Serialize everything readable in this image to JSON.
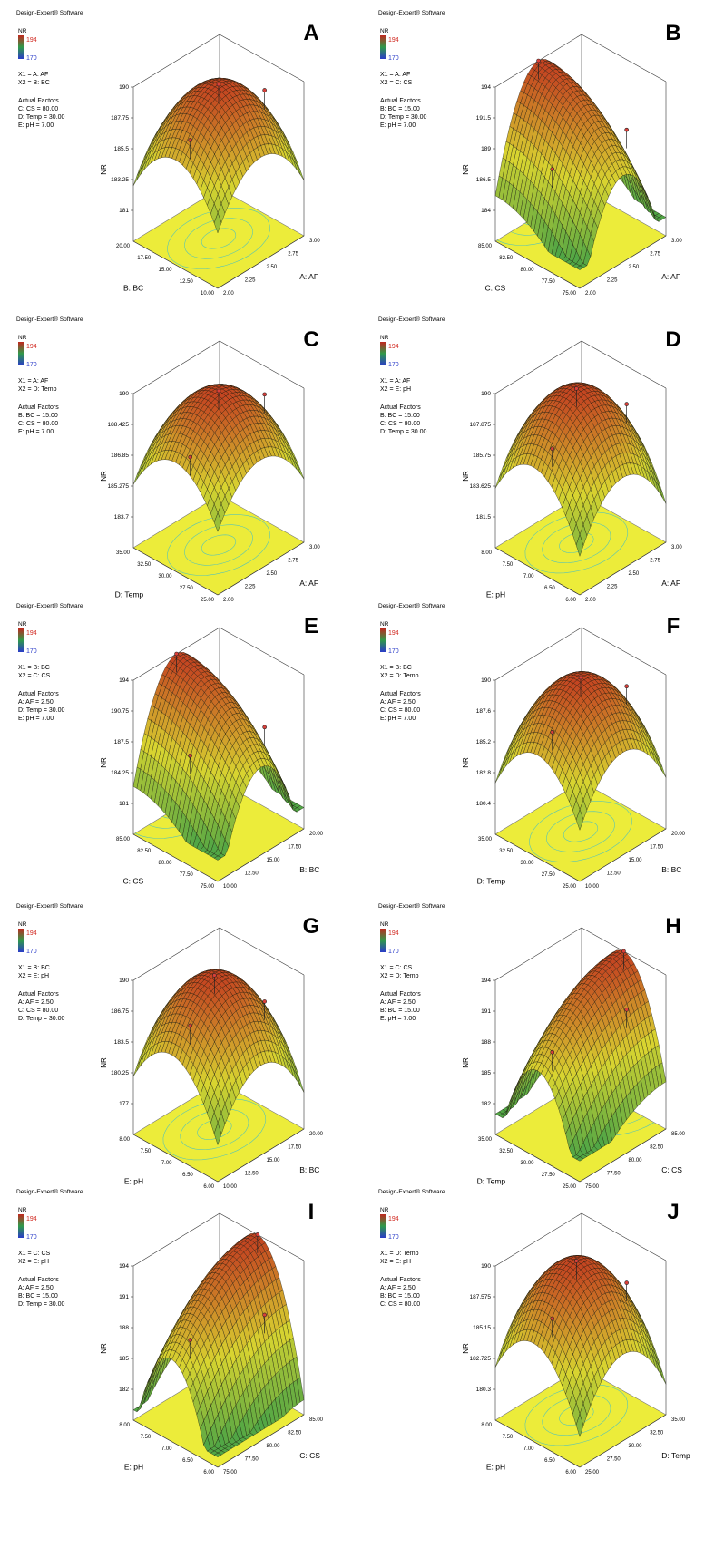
{
  "software_label": "Design-Expert® Software",
  "response_name": "NR",
  "legend_max": "194",
  "legend_min": "170",
  "colors": {
    "high": "#c0281e",
    "mid": "#d8d430",
    "low": "#2f9a4a",
    "floor": "#ecec3a",
    "contour": "#58c4b4",
    "legend_low_text": "#2a3bc8",
    "legend_high_text": "#d0241c"
  },
  "actual_factors_heading": "Actual Factors",
  "chart_data": [
    {
      "type": "surface3d",
      "panel": "A",
      "x1": "X1 = A: AF",
      "x2": "X2 = B: BC",
      "factors": [
        "C: CS = 80.00",
        "D: Temp = 30.00",
        "E: pH = 7.00"
      ],
      "xlabel": "A: AF",
      "ylabel": "B: BC",
      "zlabel": "NR",
      "xticks": [
        "2.00",
        "2.25",
        "2.50",
        "2.75",
        "3.00"
      ],
      "yticks": [
        "10.00",
        "12.50",
        "15.00",
        "17.50",
        "20.00"
      ],
      "zticks": [
        "181",
        "183.25",
        "185.5",
        "187.75",
        "190"
      ],
      "zlim": [
        178.75,
        190
      ],
      "shape": "dome",
      "peak": [
        0.5,
        0.5
      ],
      "min_z": 181
    },
    {
      "type": "surface3d",
      "panel": "B",
      "x1": "X1 = A: AF",
      "x2": "X2 = C: CS",
      "factors": [
        "B: BC = 15.00",
        "D: Temp = 30.00",
        "E: pH = 7.00"
      ],
      "xlabel": "A: AF",
      "ylabel": "C: CS",
      "zlabel": "NR",
      "xticks": [
        "2.00",
        "2.25",
        "2.50",
        "2.75",
        "3.00"
      ],
      "yticks": [
        "75.00",
        "77.50",
        "80.00",
        "82.50",
        "85.00"
      ],
      "zticks": [
        "184",
        "186.5",
        "189",
        "191.5",
        "194"
      ],
      "zlim": [
        181.5,
        194
      ],
      "shape": "ridge_x",
      "peak": [
        0.5,
        1.0
      ],
      "min_z": 183
    },
    {
      "type": "surface3d",
      "panel": "C",
      "x1": "X1 = A: AF",
      "x2": "X2 = D: Temp",
      "factors": [
        "B: BC = 15.00",
        "C: CS = 80.00",
        "E: pH = 7.00"
      ],
      "xlabel": "A: AF",
      "ylabel": "D: Temp",
      "zlabel": "NR",
      "xticks": [
        "2.00",
        "2.25",
        "2.50",
        "2.75",
        "3.00"
      ],
      "yticks": [
        "25.00",
        "27.50",
        "30.00",
        "32.50",
        "35.00"
      ],
      "zticks": [
        "183.7",
        "185.275",
        "186.85",
        "188.425",
        "190"
      ],
      "zlim": [
        182.125,
        190
      ],
      "shape": "dome",
      "peak": [
        0.5,
        0.5
      ],
      "min_z": 184.2
    },
    {
      "type": "surface3d",
      "panel": "D",
      "x1": "X1 = A: AF",
      "x2": "X2 = E: pH",
      "factors": [
        "B: BC = 15.00",
        "C: CS = 80.00",
        "D: Temp = 30.00"
      ],
      "xlabel": "A: AF",
      "ylabel": "E: pH",
      "zlabel": "NR",
      "xticks": [
        "2.00",
        "2.25",
        "2.50",
        "2.75",
        "3.00"
      ],
      "yticks": [
        "6.00",
        "6.50",
        "7.00",
        "7.50",
        "8.00"
      ],
      "zticks": [
        "181.5",
        "183.625",
        "185.75",
        "187.875",
        "190"
      ],
      "zlim": [
        179.375,
        190
      ],
      "shape": "dome",
      "peak": [
        0.5,
        0.55
      ],
      "min_z": 181
    },
    {
      "type": "surface3d",
      "panel": "E",
      "x1": "X1 = B: BC",
      "x2": "X2 = C: CS",
      "factors": [
        "A: AF = 2.50",
        "D: Temp = 30.00",
        "E: pH = 7.00"
      ],
      "xlabel": "B: BC",
      "ylabel": "C: CS",
      "zlabel": "NR",
      "xticks": [
        "10.00",
        "12.50",
        "15.00",
        "17.50",
        "20.00"
      ],
      "yticks": [
        "75.00",
        "77.50",
        "80.00",
        "82.50",
        "85.00"
      ],
      "zticks": [
        "181",
        "184.25",
        "187.5",
        "190.75",
        "194"
      ],
      "zlim": [
        177.75,
        194
      ],
      "shape": "ridge_x",
      "peak": [
        0.5,
        1.0
      ],
      "min_z": 180
    },
    {
      "type": "surface3d",
      "panel": "F",
      "x1": "X1 = B: BC",
      "x2": "X2 = D: Temp",
      "factors": [
        "A: AF = 2.50",
        "C: CS = 80.00",
        "E: pH = 7.00"
      ],
      "xlabel": "B: BC",
      "ylabel": "D: Temp",
      "zlabel": "NR",
      "xticks": [
        "10.00",
        "12.50",
        "15.00",
        "17.50",
        "20.00"
      ],
      "yticks": [
        "25.00",
        "27.50",
        "30.00",
        "32.50",
        "35.00"
      ],
      "zticks": [
        "180.4",
        "182.8",
        "185.2",
        "187.6",
        "190"
      ],
      "zlim": [
        178,
        190
      ],
      "shape": "dome",
      "peak": [
        0.5,
        0.5
      ],
      "min_z": 180
    },
    {
      "type": "surface3d",
      "panel": "G",
      "x1": "X1 = B: BC",
      "x2": "X2 = E: pH",
      "factors": [
        "A: AF = 2.50",
        "C: CS = 80.00",
        "D: Temp = 30.00"
      ],
      "xlabel": "B: BC",
      "ylabel": "E: pH",
      "zlabel": "NR",
      "xticks": [
        "10.00",
        "12.50",
        "15.00",
        "17.50",
        "20.00"
      ],
      "yticks": [
        "6.00",
        "6.50",
        "7.00",
        "7.50",
        "8.00"
      ],
      "zticks": [
        "177",
        "180.25",
        "183.5",
        "186.75",
        "190"
      ],
      "zlim": [
        173.75,
        190
      ],
      "shape": "dome",
      "peak": [
        0.5,
        0.55
      ],
      "min_z": 176
    },
    {
      "type": "surface3d",
      "panel": "H",
      "x1": "X1 = C: CS",
      "x2": "X2 = D: Temp",
      "factors": [
        "A: AF = 2.50",
        "B: BC = 15.00",
        "E: pH = 7.00"
      ],
      "xlabel": "C: CS",
      "ylabel": "D: Temp",
      "zlabel": "NR",
      "xticks": [
        "75.00",
        "77.50",
        "80.00",
        "82.50",
        "85.00"
      ],
      "yticks": [
        "25.00",
        "27.50",
        "30.00",
        "32.50",
        "35.00"
      ],
      "zticks": [
        "182",
        "185",
        "188",
        "191",
        "194"
      ],
      "zlim": [
        179,
        194
      ],
      "shape": "ridge_y",
      "peak": [
        1.0,
        0.5
      ],
      "min_z": 181
    },
    {
      "type": "surface3d",
      "panel": "I",
      "x1": "X1 = C: CS",
      "x2": "X2 = E: pH",
      "factors": [
        "A: AF = 2.50",
        "B: BC = 15.00",
        "D: Temp = 30.00"
      ],
      "xlabel": "C: CS",
      "ylabel": "E: pH",
      "zlabel": "NR",
      "xticks": [
        "75.00",
        "77.50",
        "80.00",
        "82.50",
        "85.00"
      ],
      "yticks": [
        "6.00",
        "6.50",
        "7.00",
        "7.50",
        "8.00"
      ],
      "zticks": [
        "182",
        "185",
        "188",
        "191",
        "194"
      ],
      "zlim": [
        179,
        194
      ],
      "shape": "ridge_y",
      "peak": [
        1.0,
        0.55
      ],
      "min_z": 180
    },
    {
      "type": "surface3d",
      "panel": "J",
      "x1": "X1 = D: Temp",
      "x2": "X2 = E: pH",
      "factors": [
        "A: AF = 2.50",
        "B: BC = 15.00",
        "C: CS = 80.00"
      ],
      "xlabel": "D: Temp",
      "ylabel": "E: pH",
      "zlabel": "NR",
      "xticks": [
        "25.00",
        "27.50",
        "30.00",
        "32.50",
        "35.00"
      ],
      "yticks": [
        "6.00",
        "6.50",
        "7.00",
        "7.50",
        "8.00"
      ],
      "zticks": [
        "180.3",
        "182.725",
        "185.15",
        "187.575",
        "190"
      ],
      "zlim": [
        177.875,
        190
      ],
      "shape": "dome",
      "peak": [
        0.5,
        0.55
      ],
      "min_z": 179
    }
  ]
}
